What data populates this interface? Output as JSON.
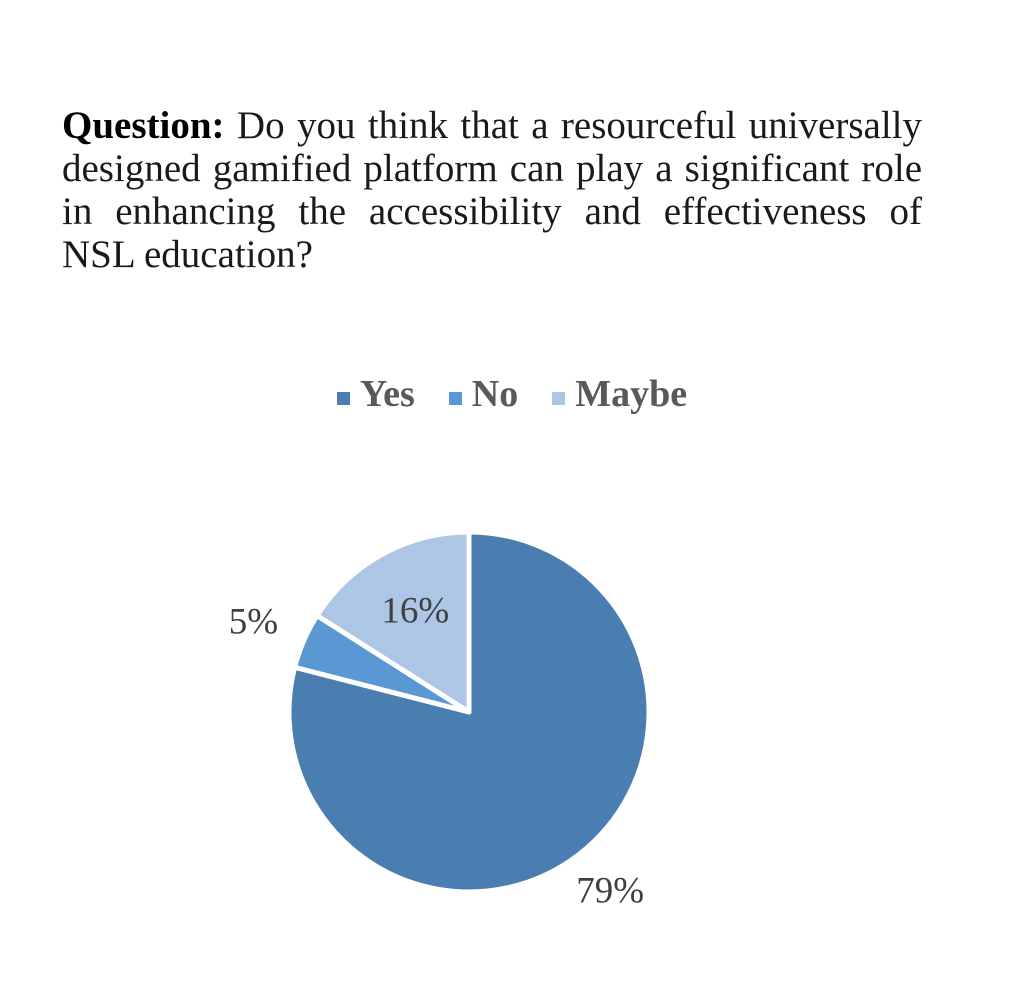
{
  "question": {
    "label": "Question:",
    "text": "Do you think that a resourceful universally designed gamified platform can play a significant role in enhancing the accessibility and effectiveness of NSL education?"
  },
  "chart_data": {
    "type": "pie",
    "title": "",
    "legend_position": "top",
    "categories": [
      "Yes",
      "No",
      "Maybe"
    ],
    "values": [
      79,
      5,
      16
    ],
    "data_labels": [
      "79%",
      "5%",
      "16%"
    ],
    "colors": [
      "#4a7eb1",
      "#5a98d4",
      "#aec6e6"
    ],
    "start_angle_deg": 0,
    "direction": "clockwise",
    "slice_border_color": "#ffffff"
  }
}
